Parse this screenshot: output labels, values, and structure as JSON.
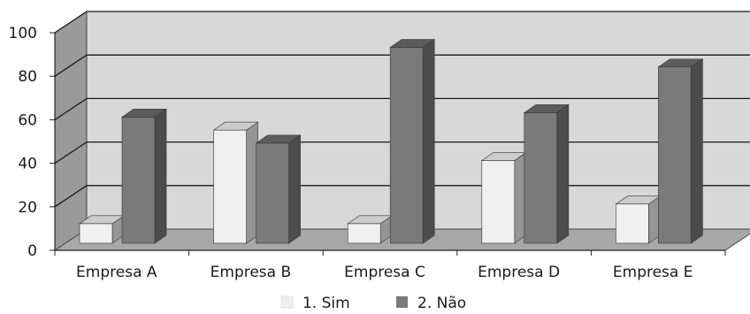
{
  "chart_data": {
    "type": "bar",
    "style": "3d-clustered-column",
    "categories": [
      "Empresa A",
      "Empresa B",
      "Empresa C",
      "Empresa D",
      "Empresa E"
    ],
    "series": [
      {
        "name": "1. Sim",
        "values": [
          9,
          52,
          9,
          38,
          18
        ],
        "color": "#f0f0f0"
      },
      {
        "name": "2. Não",
        "values": [
          58,
          46,
          90,
          60,
          81
        ],
        "color": "#7a7a7a"
      }
    ],
    "yticks": [
      "0",
      "20",
      "40",
      "60",
      "80",
      "100"
    ],
    "ylim": [
      0,
      100
    ],
    "grid": true,
    "legend_position": "bottom"
  },
  "colors": {
    "back_wall": "#d8d8d8",
    "side_wall": "#9a9a9a",
    "floor": "#a8a8a8",
    "gridline": "#1a1a1a"
  }
}
